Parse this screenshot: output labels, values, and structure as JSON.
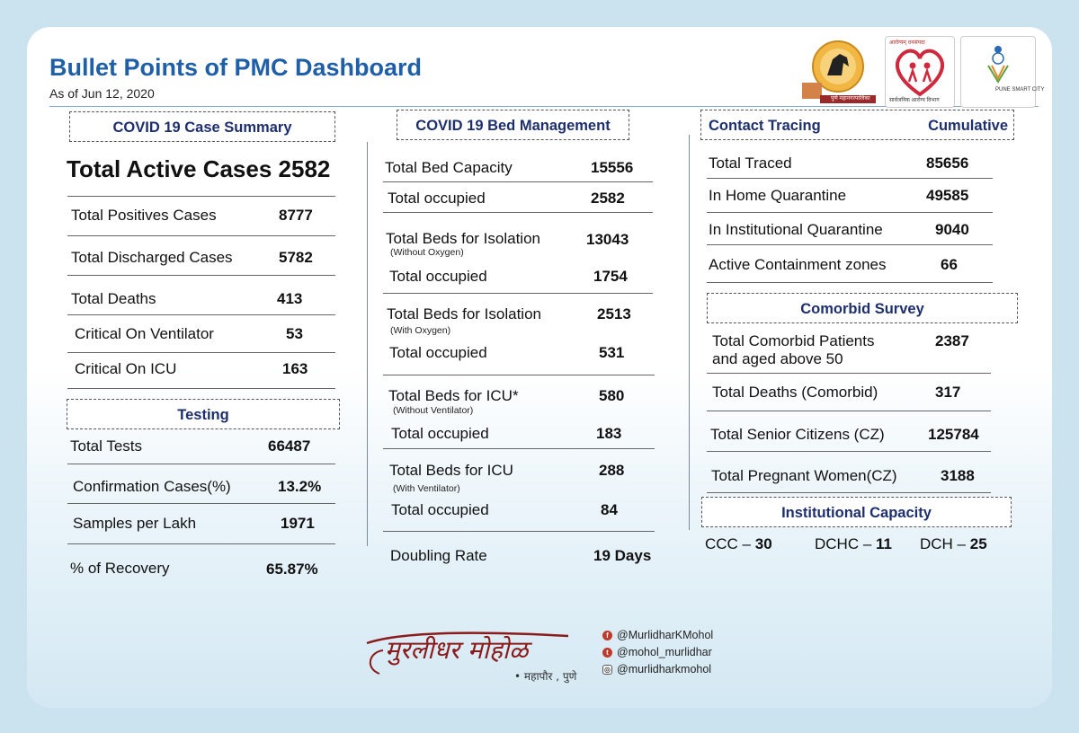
{
  "header": {
    "title": "Bullet Points of PMC Dashboard",
    "as_of": "As of Jun 12, 2020"
  },
  "case_summary": {
    "heading": "COVID 19 Case Summary",
    "total_active": "Total Active Cases 2582",
    "rows": [
      {
        "label": "Total Positives Cases",
        "value": "8777"
      },
      {
        "label": "Total Discharged Cases",
        "value": "5782"
      },
      {
        "label": "Total Deaths",
        "value": "413"
      },
      {
        "label": "Critical On Ventilator",
        "value": "53"
      },
      {
        "label": "Critical On ICU",
        "value": "163"
      }
    ]
  },
  "testing": {
    "heading": "Testing",
    "rows": [
      {
        "label": "Total Tests",
        "value": "66487"
      },
      {
        "label": "Confirmation Cases(%)",
        "value": "13.2%"
      },
      {
        "label": "Samples per Lakh",
        "value": "1971"
      },
      {
        "label": "% of Recovery",
        "value": "65.87%"
      }
    ]
  },
  "bed_management": {
    "heading": "COVID 19 Bed Management",
    "rows": [
      {
        "label": "Total Bed Capacity",
        "value": "15556"
      },
      {
        "label": "Total occupied",
        "value": "2582"
      },
      {
        "label": "Total Beds for Isolation",
        "sub": "(Without Oxygen)",
        "value": "13043"
      },
      {
        "label": "Total occupied",
        "value": "1754"
      },
      {
        "label": "Total Beds for Isolation",
        "sub": "(With Oxygen)",
        "value": "2513"
      },
      {
        "label": "Total occupied",
        "value": "531"
      },
      {
        "label": "Total Beds for ICU*",
        "sub": "(Without Ventilator)",
        "value": "580"
      },
      {
        "label": "Total occupied",
        "value": "183"
      },
      {
        "label": "Total Beds for ICU",
        "sub": "(With Ventilator)",
        "value": "288"
      },
      {
        "label": "Total occupied",
        "value": "84"
      }
    ],
    "doubling_label": "Doubling Rate",
    "doubling_value": "19 Days"
  },
  "contact_tracing": {
    "heading": "Contact Tracing",
    "heading_right": "Cumulative",
    "rows": [
      {
        "label": "Total Traced",
        "value": "85656"
      },
      {
        "label": "In Home Quarantine",
        "value": "49585"
      },
      {
        "label": "In Institutional Quarantine",
        "value": "9040"
      },
      {
        "label": "Active Containment zones",
        "value": "66"
      }
    ]
  },
  "comorbid": {
    "heading": "Comorbid Survey",
    "rows": [
      {
        "label": "Total Comorbid Patients",
        "label2": "and aged above 50",
        "value": "2387"
      },
      {
        "label": "Total Deaths (Comorbid)",
        "value": "317"
      },
      {
        "label": "Total Senior Citizens (CZ)",
        "value": "125784"
      },
      {
        "label": "Total Pregnant Women(CZ)",
        "value": "3188"
      }
    ]
  },
  "institutional": {
    "heading": "Institutional Capacity",
    "items": [
      {
        "label": "CCC – ",
        "value": "30"
      },
      {
        "label": "DCHC – ",
        "value": "11"
      },
      {
        "label": "DCH – ",
        "value": "25"
      }
    ]
  },
  "signature": {
    "name": "मुरलीधर मोहोळ",
    "subtitle": "• महापौर , पुणे"
  },
  "social": {
    "facebook": "@MurlidharKMohol",
    "twitter": "@mohol_murlidhar",
    "instagram": "@murlidharkmohol"
  },
  "logos": {
    "pmc": "पुणे महानगरपालिका",
    "health": "आरोग्यम् धनसंपदा",
    "health_caption": "सार्वजनिक आरोग्य विभाग",
    "smart_city": "PUNE SMART CITY"
  },
  "colors": {
    "title": "#1f5fa8",
    "heading_text": "#1d2f6e",
    "signature": "#8b1a1a",
    "background": "#cbe3ef"
  }
}
